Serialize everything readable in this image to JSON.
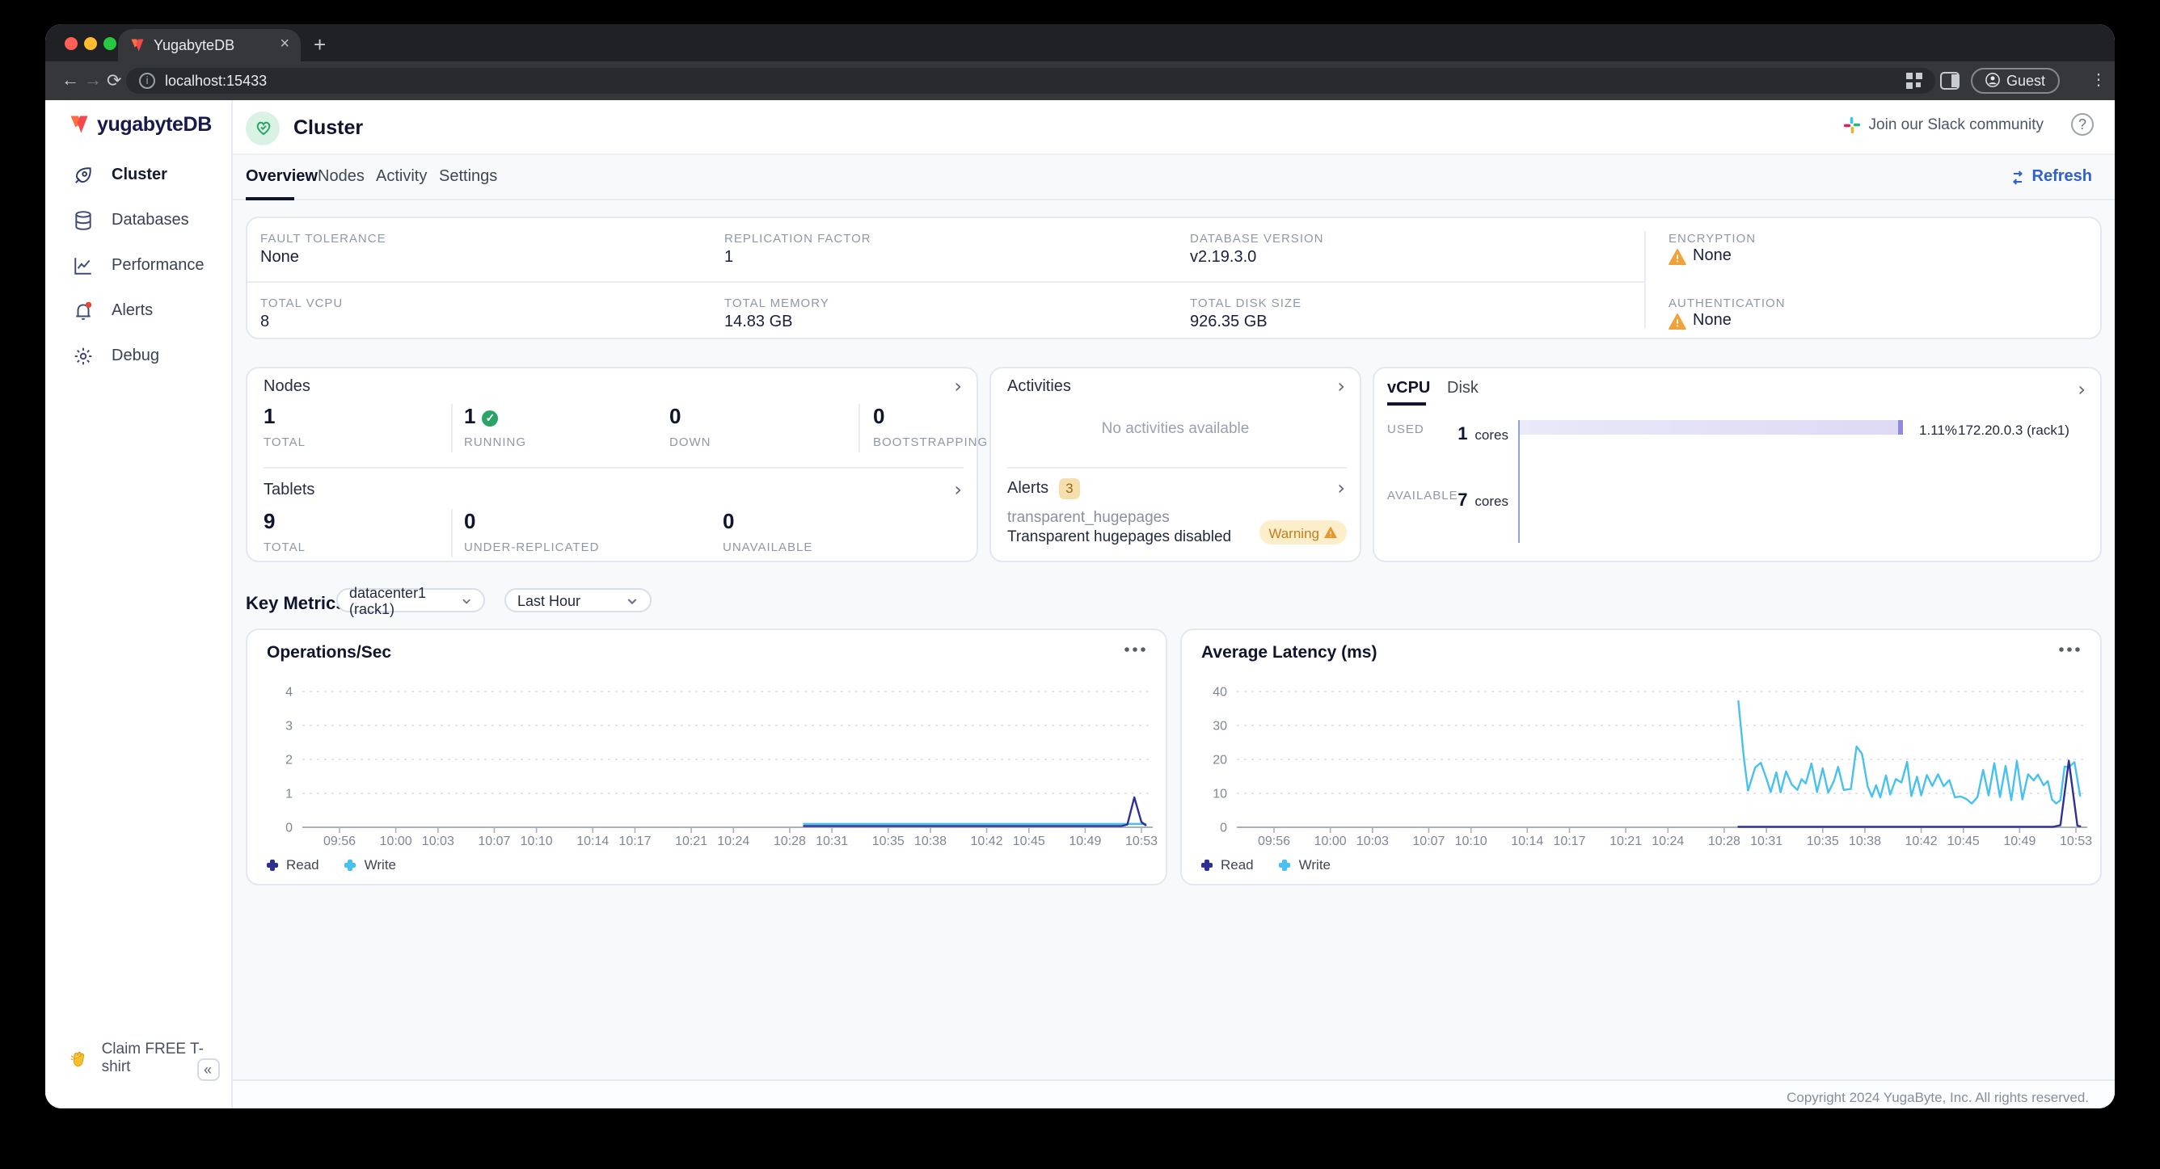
{
  "browser": {
    "tab_title": "YugabyteDB",
    "close_tab": "×",
    "new_tab": "+",
    "url": "localhost:15433",
    "profile_label": "Guest"
  },
  "sidebar": {
    "logo_text": "yugabyteDB",
    "items": [
      {
        "label": "Cluster",
        "icon": "rocket-icon",
        "active": true
      },
      {
        "label": "Databases",
        "icon": "database-icon",
        "active": false
      },
      {
        "label": "Performance",
        "icon": "performance-icon",
        "active": false
      },
      {
        "label": "Alerts",
        "icon": "bell-icon",
        "active": false,
        "has_red_dot": true
      },
      {
        "label": "Debug",
        "icon": "gear-icon",
        "active": false
      }
    ],
    "claim_tshirt": "Claim FREE T-shirt",
    "collapse_label": "«"
  },
  "header": {
    "title": "Cluster",
    "slack_link": "Join our Slack community",
    "help_label": "?"
  },
  "page_tabs": [
    {
      "label": "Overview",
      "active": true
    },
    {
      "label": "Nodes",
      "active": false
    },
    {
      "label": "Activity",
      "active": false
    },
    {
      "label": "Settings",
      "active": false
    }
  ],
  "refresh_label": "Refresh",
  "stats": {
    "fault_tolerance": {
      "label": "FAULT TOLERANCE",
      "value": "None"
    },
    "replication_factor": {
      "label": "REPLICATION FACTOR",
      "value": "1"
    },
    "database_version": {
      "label": "DATABASE VERSION",
      "value": "v2.19.3.0"
    },
    "encryption": {
      "label": "ENCRYPTION",
      "value": "None",
      "warning": true
    },
    "total_vcpu": {
      "label": "TOTAL VCPU",
      "value": "8"
    },
    "total_memory": {
      "label": "TOTAL MEMORY",
      "value": "14.83 GB"
    },
    "total_disk": {
      "label": "TOTAL DISK SIZE",
      "value": "926.35 GB"
    },
    "authentication": {
      "label": "AUTHENTICATION",
      "value": "None",
      "warning": true
    }
  },
  "nodes_panel": {
    "title": "Nodes",
    "total": {
      "value": "1",
      "label": "TOTAL"
    },
    "running": {
      "value": "1",
      "label": "RUNNING"
    },
    "down": {
      "value": "0",
      "label": "DOWN"
    },
    "bootstrapping": {
      "value": "0",
      "label": "BOOTSTRAPPING"
    }
  },
  "tablets_panel": {
    "title": "Tablets",
    "total": {
      "value": "9",
      "label": "TOTAL"
    },
    "under_replicated": {
      "value": "0",
      "label": "UNDER-REPLICATED"
    },
    "unavailable": {
      "value": "0",
      "label": "UNAVAILABLE"
    }
  },
  "activities_panel": {
    "title": "Activities",
    "empty_text": "No activities available"
  },
  "alerts_panel": {
    "title": "Alerts",
    "count": "3",
    "alert_name": "transparent_hugepages",
    "alert_message": "Transparent hugepages disabled",
    "alert_severity": "Warning"
  },
  "cpu_panel": {
    "tabs": [
      {
        "label": "vCPU",
        "active": true
      },
      {
        "label": "Disk",
        "active": false
      }
    ],
    "used": {
      "label": "USED",
      "value": "1",
      "unit": "cores",
      "percent": "1.11%",
      "node": "172.20.0.3 (rack1)"
    },
    "available": {
      "label": "AVAILABLE",
      "value": "7",
      "unit": "cores"
    }
  },
  "key_metrics": {
    "title": "Key Metrics",
    "region_select": "datacenter1 (rack1)",
    "range_select": "Last Hour"
  },
  "colors": {
    "accent_blue": "#2f5fd0",
    "warning_orange": "#f0a33a",
    "success_green": "#2ba468",
    "read_line": "#2d3194",
    "write_line": "#47c1ef",
    "cpu_bar_body": "#ded9f5",
    "cpu_bar_cap": "#8f8ae0",
    "cpu_axis": "#8ba2de"
  },
  "chart_data": [
    {
      "type": "line",
      "title": "Operations/Sec",
      "xlabel": "",
      "ylabel": "",
      "ylim": [
        0,
        4.4
      ],
      "y_ticks": [
        0,
        1,
        2,
        3,
        4
      ],
      "grid": "dotted-horizontal",
      "legend_position": "bottom-left",
      "x_tick_labels": [
        "09:56",
        "10:00",
        "10:03",
        "10:07",
        "10:10",
        "10:14",
        "10:17",
        "10:21",
        "10:24",
        "10:28",
        "10:31",
        "10:35",
        "10:38",
        "10:42",
        "10:45",
        "10:49",
        "10:53"
      ],
      "x_tick_minutes": [
        0,
        4,
        7,
        11,
        14,
        18,
        21,
        25,
        28,
        32,
        35,
        39,
        42,
        46,
        49,
        53,
        57
      ],
      "series": [
        {
          "name": "Read",
          "color": "#2d3194",
          "points": [
            [
              33,
              0.04
            ],
            [
              55.6,
              0.04
            ],
            [
              56.0,
              0.08
            ],
            [
              56.5,
              0.88
            ],
            [
              57.0,
              0.15
            ],
            [
              57.3,
              0.06
            ]
          ]
        },
        {
          "name": "Write",
          "color": "#47c1ef",
          "points": [
            [
              33,
              0.1
            ],
            [
              57.3,
              0.1
            ]
          ]
        }
      ]
    },
    {
      "type": "line",
      "title": "Average Latency (ms)",
      "xlabel": "",
      "ylabel": "",
      "ylim": [
        0,
        44
      ],
      "y_ticks": [
        0,
        10,
        20,
        30,
        40
      ],
      "grid": "dotted-horizontal",
      "legend_position": "bottom-left",
      "x_tick_labels": [
        "09:56",
        "10:00",
        "10:03",
        "10:07",
        "10:10",
        "10:14",
        "10:17",
        "10:21",
        "10:24",
        "10:28",
        "10:31",
        "10:35",
        "10:38",
        "10:42",
        "10:45",
        "10:49",
        "10:53"
      ],
      "x_tick_minutes": [
        0,
        4,
        7,
        11,
        14,
        18,
        21,
        25,
        28,
        32,
        35,
        39,
        42,
        46,
        49,
        53,
        57
      ],
      "series": [
        {
          "name": "Read",
          "color": "#2d3194",
          "points": [
            [
              33,
              0.15
            ],
            [
              55.4,
              0.15
            ],
            [
              55.9,
              0.6
            ],
            [
              56.5,
              19.6
            ],
            [
              57.1,
              0.5
            ],
            [
              57.3,
              0.3
            ]
          ]
        },
        {
          "name": "Write",
          "color": "#47c1ef",
          "points": [
            [
              33,
              37.2
            ],
            [
              33.4,
              20.5
            ],
            [
              33.7,
              10.8
            ],
            [
              34.2,
              17.6
            ],
            [
              34.6,
              19
            ],
            [
              35,
              14.3
            ],
            [
              35.3,
              10.4
            ],
            [
              35.7,
              16.2
            ],
            [
              36,
              10.3
            ],
            [
              36.4,
              16.5
            ],
            [
              36.8,
              12.6
            ],
            [
              37.2,
              11
            ],
            [
              37.5,
              14.2
            ],
            [
              37.8,
              12.9
            ],
            [
              38.2,
              18.8
            ],
            [
              38.6,
              10.4
            ],
            [
              39,
              17.4
            ],
            [
              39.4,
              10.2
            ],
            [
              39.8,
              13.6
            ],
            [
              40.1,
              17.8
            ],
            [
              40.5,
              11
            ],
            [
              41,
              11.3
            ],
            [
              41.4,
              23.8
            ],
            [
              41.8,
              21.6
            ],
            [
              42.2,
              12
            ],
            [
              42.5,
              9
            ],
            [
              42.8,
              12.4
            ],
            [
              43.1,
              8.8
            ],
            [
              43.5,
              15.3
            ],
            [
              43.8,
              9.6
            ],
            [
              44.2,
              14.2
            ],
            [
              44.6,
              13.2
            ],
            [
              45,
              19.3
            ],
            [
              45.3,
              9.2
            ],
            [
              45.7,
              14.9
            ],
            [
              46,
              9.4
            ],
            [
              46.4,
              15.4
            ],
            [
              46.8,
              12.2
            ],
            [
              47.2,
              15.6
            ],
            [
              47.6,
              12.1
            ],
            [
              48,
              13.9
            ],
            [
              48.4,
              8.8
            ],
            [
              48.8,
              9.1
            ],
            [
              49.2,
              8.4
            ],
            [
              49.6,
              7
            ],
            [
              50,
              8.9
            ],
            [
              50.4,
              16.9
            ],
            [
              50.8,
              9.4
            ],
            [
              51.2,
              18.9
            ],
            [
              51.6,
              8.9
            ],
            [
              52,
              18.1
            ],
            [
              52.4,
              8
            ],
            [
              52.8,
              19.5
            ],
            [
              53.2,
              8.2
            ],
            [
              53.6,
              15.6
            ],
            [
              54,
              13.8
            ],
            [
              54.3,
              15.5
            ],
            [
              54.7,
              12.4
            ],
            [
              55,
              13.6
            ],
            [
              55.3,
              8.2
            ],
            [
              55.6,
              7
            ],
            [
              55.9,
              8
            ],
            [
              56.2,
              17.9
            ],
            [
              56.5,
              17.7
            ],
            [
              56.9,
              19.2
            ],
            [
              57.3,
              9.3
            ]
          ]
        }
      ]
    }
  ],
  "footer": "Copyright 2024 YugaByte, Inc. All rights reserved."
}
